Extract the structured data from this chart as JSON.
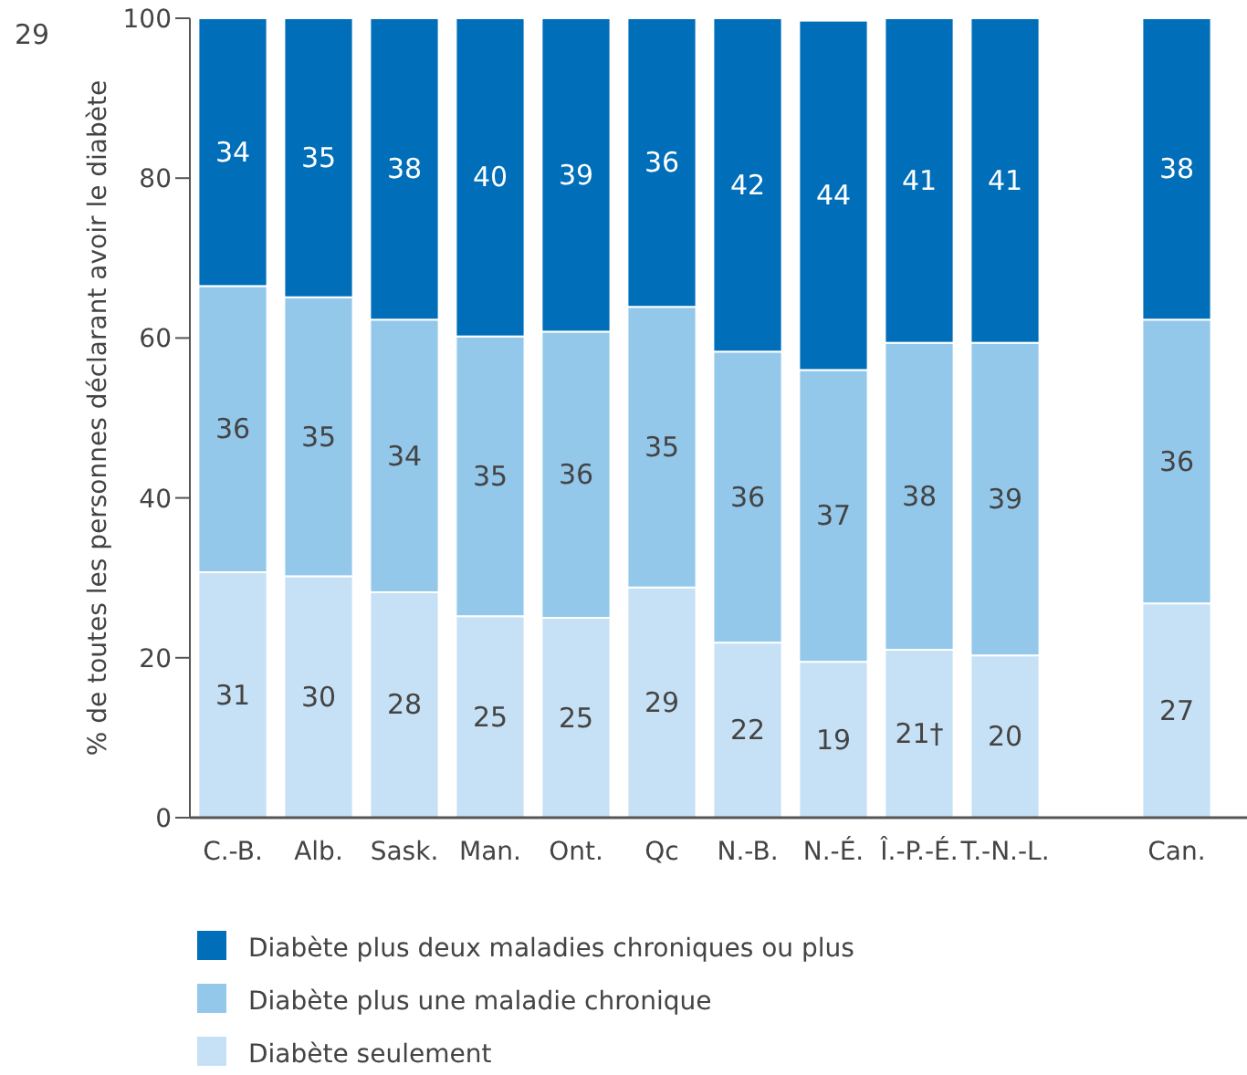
{
  "chart_data": {
    "type": "bar",
    "stacked": true,
    "ylabel": "% de toutes les personnes déclarant avoir le diabète",
    "annotations": [
      "29"
    ],
    "categories": [
      "C.-B.",
      "Alb.",
      "Sask.",
      "Man.",
      "Ont.",
      "Qc",
      "N.-B.",
      "N.-É.",
      "Î.-P.-É.",
      "T.-N.-L.",
      null,
      "Can."
    ],
    "series": [
      {
        "name": "Diabète seulement",
        "color": "#c6e1f5",
        "values": [
          30.7,
          30.2,
          28.2,
          25.2,
          25.0,
          28.8,
          21.9,
          19.5,
          21.0,
          20.3,
          null,
          26.8
        ],
        "value_labels": [
          "31",
          "30",
          "28",
          "25",
          "25",
          "29",
          "22",
          "19",
          "21†",
          "20",
          null,
          "27"
        ]
      },
      {
        "name": "Diabète plus une maladie chronique",
        "color": "#93c8eb",
        "values": [
          35.8,
          34.9,
          34.1,
          35.0,
          35.8,
          35.1,
          36.4,
          36.5,
          38.4,
          39.1,
          null,
          35.5
        ],
        "value_labels": [
          "36",
          "35",
          "34",
          "35",
          "36",
          "35",
          "36",
          "37",
          "38",
          "39",
          null,
          "36"
        ]
      },
      {
        "name": "Diabète plus deux maladies chroniques ou plus",
        "color": "#006eb9",
        "values": [
          33.5,
          34.9,
          37.7,
          39.8,
          39.2,
          36.1,
          41.7,
          43.7,
          40.6,
          40.6,
          null,
          37.7
        ],
        "value_labels": [
          "34",
          "35",
          "38",
          "40",
          "39",
          "36",
          "42",
          "44",
          "41",
          "41",
          null,
          "38"
        ]
      }
    ],
    "ylim": [
      0,
      100
    ],
    "yticks": [
      0,
      20,
      40,
      60,
      80,
      100
    ],
    "grid": false,
    "legend": "bottom"
  }
}
